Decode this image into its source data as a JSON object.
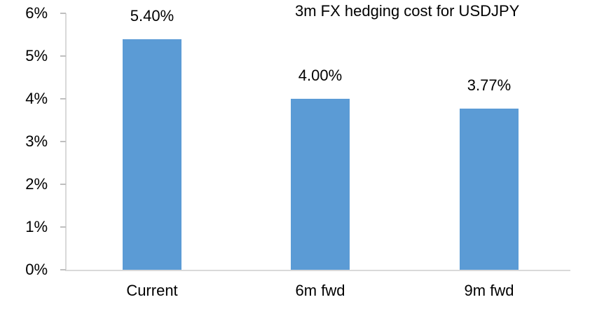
{
  "chart_data": {
    "type": "bar",
    "title": "3m FX hedging cost for USDJPY",
    "categories": [
      "Current",
      "6m fwd",
      "9m fwd"
    ],
    "values": [
      5.4,
      4.0,
      3.77
    ],
    "value_labels": [
      "5.40%",
      "4.00%",
      "3.77%"
    ],
    "xlabel": "",
    "ylabel": "",
    "ylim": [
      0,
      6
    ],
    "ytick_step": 1,
    "ytick_labels": [
      "0%",
      "1%",
      "2%",
      "3%",
      "4%",
      "5%",
      "6%"
    ],
    "grid": false,
    "legend_position": "none",
    "colors": {
      "bar": "#5b9bd5",
      "axis_line": "#d9d9d9",
      "tick_mark": "#bfbfbf",
      "text": "#000000",
      "background": "#ffffff"
    }
  }
}
